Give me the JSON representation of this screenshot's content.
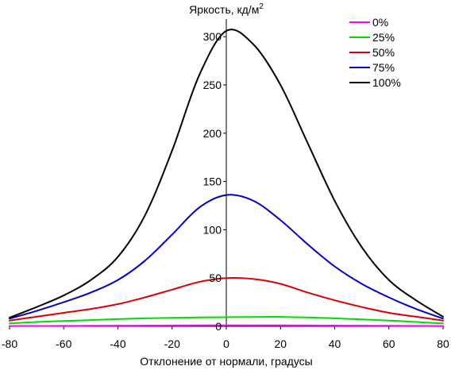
{
  "chart_data": {
    "type": "line",
    "xlabel": "Отклонение от нормали, градусы",
    "ylabel_main": "Яркость, кд/м",
    "ylabel_sup": "2",
    "xlim": [
      -80,
      80
    ],
    "ylim": [
      0,
      310
    ],
    "xticks": [
      -80,
      -60,
      -40,
      -20,
      0,
      20,
      40,
      60,
      80
    ],
    "yticks": [
      0,
      50,
      100,
      150,
      200,
      250,
      300
    ],
    "legend_position": "top-right",
    "x": [
      -80,
      -70,
      -60,
      -50,
      -40,
      -30,
      -20,
      -10,
      0,
      10,
      20,
      30,
      40,
      50,
      60,
      70,
      80
    ],
    "series": [
      {
        "name": "0%",
        "color": "#ff00ff",
        "values": [
          0.3,
          0.4,
          0.5,
          0.6,
          0.7,
          0.8,
          0.9,
          1.0,
          1.0,
          1.0,
          1.0,
          0.9,
          0.8,
          0.7,
          0.6,
          0.5,
          0.3
        ]
      },
      {
        "name": "25%",
        "color": "#00dd00",
        "values": [
          3,
          4.5,
          5.5,
          6.5,
          7.5,
          8.3,
          8.8,
          9.2,
          9.5,
          9.7,
          9.8,
          9.2,
          8.3,
          7.2,
          6,
          4.5,
          3
        ]
      },
      {
        "name": "50%",
        "color": "#dd0000",
        "values": [
          6,
          10,
          14,
          18,
          23,
          30,
          38,
          46,
          50,
          49,
          44,
          35,
          27,
          20,
          14,
          10,
          6
        ]
      },
      {
        "name": "75%",
        "color": "#0000cc",
        "values": [
          8,
          16,
          25,
          35,
          48,
          68,
          95,
          123,
          136,
          130,
          110,
          85,
          62,
          44,
          30,
          18,
          8
        ]
      },
      {
        "name": "100%",
        "color": "#000000",
        "values": [
          9,
          20,
          32,
          48,
          72,
          115,
          182,
          260,
          306,
          292,
          250,
          190,
          130,
          82,
          48,
          27,
          10
        ]
      }
    ]
  }
}
